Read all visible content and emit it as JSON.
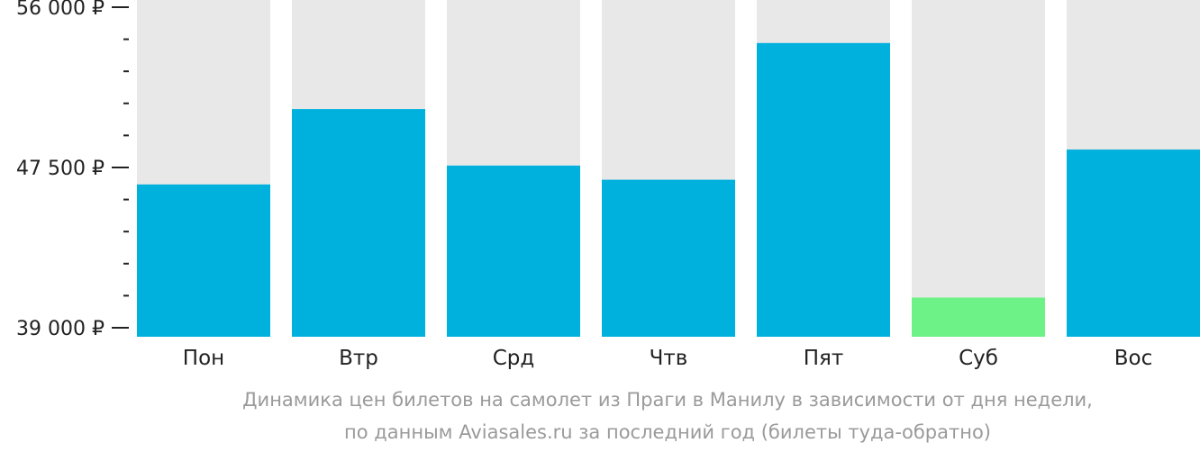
{
  "chart_data": {
    "type": "bar",
    "categories": [
      "Пон",
      "Втр",
      "Срд",
      "Чтв",
      "Пят",
      "Суб",
      "Вос"
    ],
    "values": [
      46600,
      50600,
      47600,
      46850,
      54100,
      40600,
      48450
    ],
    "highlight_index": 5,
    "ylim": [
      39000,
      56000
    ],
    "yticks": [
      {
        "value": 39000,
        "label": "39 000 ₽"
      },
      {
        "value": 47500,
        "label": "47 500 ₽"
      },
      {
        "value": 56000,
        "label": "56 000 ₽"
      }
    ],
    "minor_tick_step": 1700,
    "title": "",
    "xlabel": "",
    "ylabel": "",
    "caption": [
      "Динамика цен билетов на самолет из Праги в Манилу в зависимости от дня недели,",
      "по данным Aviasales.ru за последний год (билеты туда-обратно)"
    ],
    "colors": {
      "bar": "#00b0dd",
      "highlight": "#6cf286",
      "background_bar": "#e8e8e8",
      "axis": "#222222",
      "caption": "#9a9a9a"
    }
  }
}
